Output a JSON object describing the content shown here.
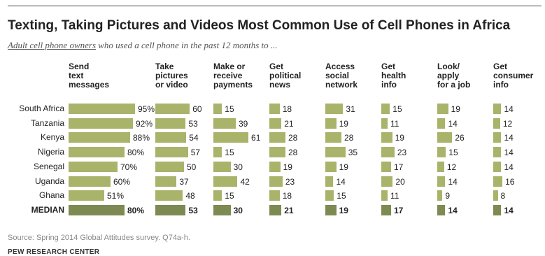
{
  "title": "Texting, Taking Pictures and Videos Most Common Use of Cell Phones in Africa",
  "subtitle_underlined": "Adult cell phone owners",
  "subtitle_rest": " who used a cell phone in the past 12 months to ...",
  "source": "Source: Spring 2014 Global Attitudes survey. Q74a-h.",
  "org": "PEW RESEARCH CENTER",
  "colors": {
    "bar": "#a9b36a",
    "median_bar": "#7d8a52",
    "text": "#222222"
  },
  "chart_data": {
    "type": "bar",
    "categories": [
      "South Africa",
      "Tanzania",
      "Kenya",
      "Nigeria",
      "Senegal",
      "Uganda",
      "Ghana",
      "MEDIAN"
    ],
    "series": [
      {
        "name": "Send\ntext\nmessages",
        "values": [
          95,
          92,
          88,
          80,
          70,
          60,
          51,
          80
        ]
      },
      {
        "name": "Take\npictures\nor video",
        "values": [
          60,
          53,
          54,
          57,
          50,
          37,
          48,
          53
        ]
      },
      {
        "name": "Make or\nreceive\npayments",
        "values": [
          15,
          39,
          61,
          15,
          30,
          42,
          15,
          30
        ]
      },
      {
        "name": "Get\npolitical\nnews",
        "values": [
          18,
          21,
          28,
          28,
          19,
          23,
          18,
          21
        ]
      },
      {
        "name": "Access\nsocial\nnetwork",
        "values": [
          31,
          19,
          28,
          35,
          19,
          14,
          15,
          19
        ]
      },
      {
        "name": "Get\nhealth\ninfo",
        "values": [
          15,
          11,
          19,
          23,
          17,
          20,
          11,
          17
        ]
      },
      {
        "name": "Look/\napply\nfor a job",
        "values": [
          19,
          14,
          26,
          15,
          12,
          14,
          9,
          14
        ]
      },
      {
        "name": "Get\nconsumer\ninfo",
        "values": [
          14,
          12,
          14,
          14,
          14,
          16,
          8,
          14
        ]
      }
    ],
    "value_suffix_first_series": "%",
    "median_label": "MEDIAN"
  }
}
